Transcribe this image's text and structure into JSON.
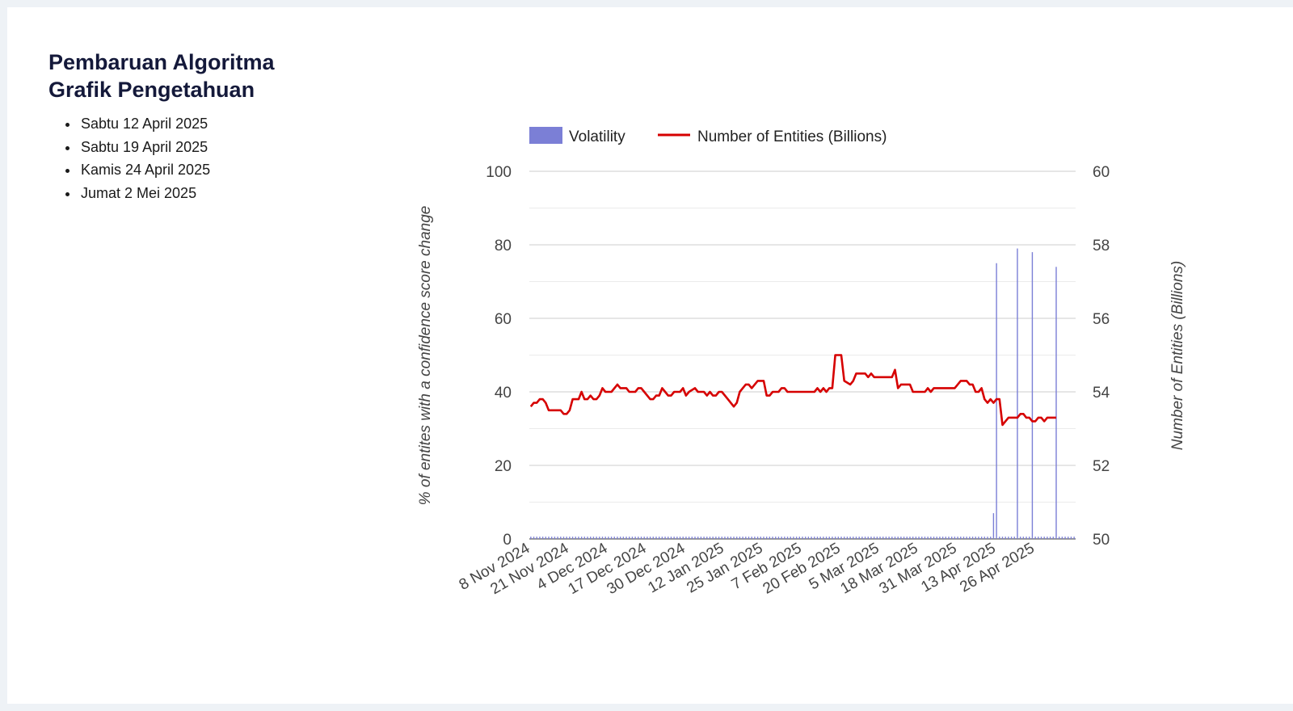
{
  "sidebar": {
    "title": "Pembaruan Algoritma Grafik Pengetahuan",
    "dates": [
      "Sabtu 12 April 2025",
      "Sabtu 19 April 2025",
      "Kamis 24 April 2025",
      "Jumat 2 Mei 2025"
    ]
  },
  "colors": {
    "volatility": "#7b7fd6",
    "entities": "#d60000",
    "grid": "#cccccc",
    "text": "#444444"
  },
  "chart_data": {
    "type": "bar+line",
    "legend_position": "top",
    "grid": true,
    "legend": [
      "Volatility",
      "Number of Entities (Billions)"
    ],
    "ylabel": "% of entites with a confidence score change",
    "y2label": "Number of Entities (Billions)",
    "ylim": [
      0,
      100
    ],
    "y2lim": [
      50,
      60
    ],
    "yticks": [
      0,
      20,
      40,
      60,
      80,
      100
    ],
    "y2ticks": [
      50,
      52,
      54,
      56,
      58,
      60
    ],
    "x_tick_labels": [
      "8 Nov 2024",
      "21 Nov 2024",
      "4 Dec 2024",
      "17 Dec 2024",
      "30 Dec 2024",
      "12 Jan 2025",
      "25 Jan 2025",
      "7 Feb 2025",
      "20 Feb 2025",
      "5 Mar 2025",
      "18 Mar 2025",
      "31 Mar 2025",
      "13 Apr 2025",
      "26 Apr 2025"
    ],
    "x_start_date": "2024-11-08",
    "day_count": 183,
    "volatility_baseline": 0.6,
    "volatility_spikes": [
      {
        "day": 155,
        "value": 7
      },
      {
        "day": 156,
        "value": 75
      },
      {
        "day": 163,
        "value": 79
      },
      {
        "day": 168,
        "value": 78
      },
      {
        "day": 176,
        "value": 74
      }
    ],
    "entities": [
      [
        0,
        53.6
      ],
      [
        1,
        53.7
      ],
      [
        2,
        53.7
      ],
      [
        3,
        53.8
      ],
      [
        4,
        53.8
      ],
      [
        5,
        53.7
      ],
      [
        6,
        53.5
      ],
      [
        10,
        53.5
      ],
      [
        11,
        53.4
      ],
      [
        12,
        53.4
      ],
      [
        13,
        53.5
      ],
      [
        14,
        53.8
      ],
      [
        16,
        53.8
      ],
      [
        17,
        54.0
      ],
      [
        18,
        53.8
      ],
      [
        19,
        53.8
      ],
      [
        20,
        53.9
      ],
      [
        21,
        53.8
      ],
      [
        22,
        53.8
      ],
      [
        23,
        53.9
      ],
      [
        24,
        54.1
      ],
      [
        25,
        54.0
      ],
      [
        27,
        54.0
      ],
      [
        29,
        54.2
      ],
      [
        30,
        54.1
      ],
      [
        32,
        54.1
      ],
      [
        33,
        54.0
      ],
      [
        35,
        54.0
      ],
      [
        36,
        54.1
      ],
      [
        37,
        54.1
      ],
      [
        38,
        54.0
      ],
      [
        40,
        53.8
      ],
      [
        41,
        53.8
      ],
      [
        42,
        53.9
      ],
      [
        43,
        53.9
      ],
      [
        44,
        54.1
      ],
      [
        45,
        54.0
      ],
      [
        46,
        53.9
      ],
      [
        47,
        53.9
      ],
      [
        48,
        54.0
      ],
      [
        50,
        54.0
      ],
      [
        51,
        54.1
      ],
      [
        52,
        53.9
      ],
      [
        53,
        54.0
      ],
      [
        55,
        54.1
      ],
      [
        56,
        54.0
      ],
      [
        58,
        54.0
      ],
      [
        59,
        53.9
      ],
      [
        60,
        54.0
      ],
      [
        61,
        53.9
      ],
      [
        62,
        53.9
      ],
      [
        63,
        54.0
      ],
      [
        64,
        54.0
      ],
      [
        66,
        53.8
      ],
      [
        68,
        53.6
      ],
      [
        69,
        53.7
      ],
      [
        70,
        54.0
      ],
      [
        71,
        54.1
      ],
      [
        72,
        54.2
      ],
      [
        73,
        54.2
      ],
      [
        74,
        54.1
      ],
      [
        75,
        54.2
      ],
      [
        76,
        54.3
      ],
      [
        78,
        54.3
      ],
      [
        79,
        53.9
      ],
      [
        80,
        53.9
      ],
      [
        81,
        54.0
      ],
      [
        83,
        54.0
      ],
      [
        84,
        54.1
      ],
      [
        85,
        54.1
      ],
      [
        86,
        54.0
      ],
      [
        95,
        54.0
      ],
      [
        96,
        54.1
      ],
      [
        97,
        54.0
      ],
      [
        98,
        54.1
      ],
      [
        99,
        54.0
      ],
      [
        100,
        54.1
      ],
      [
        101,
        54.1
      ],
      [
        102,
        55.0
      ],
      [
        103,
        55.0
      ],
      [
        104,
        55.0
      ],
      [
        105,
        54.3
      ],
      [
        107,
        54.2
      ],
      [
        108,
        54.3
      ],
      [
        109,
        54.5
      ],
      [
        112,
        54.5
      ],
      [
        113,
        54.4
      ],
      [
        114,
        54.5
      ],
      [
        115,
        54.4
      ],
      [
        121,
        54.4
      ],
      [
        122,
        54.6
      ],
      [
        123,
        54.1
      ],
      [
        124,
        54.2
      ],
      [
        127,
        54.2
      ],
      [
        128,
        54.0
      ],
      [
        132,
        54.0
      ],
      [
        133,
        54.1
      ],
      [
        134,
        54.0
      ],
      [
        135,
        54.1
      ],
      [
        142,
        54.1
      ],
      [
        143,
        54.2
      ],
      [
        144,
        54.3
      ],
      [
        146,
        54.3
      ],
      [
        147,
        54.2
      ],
      [
        148,
        54.2
      ],
      [
        149,
        54.0
      ],
      [
        150,
        54.0
      ],
      [
        151,
        54.1
      ],
      [
        152,
        53.8
      ],
      [
        153,
        53.7
      ],
      [
        154,
        53.8
      ],
      [
        155,
        53.7
      ],
      [
        156,
        53.8
      ],
      [
        157,
        53.8
      ],
      [
        158,
        53.1
      ],
      [
        159,
        53.2
      ],
      [
        160,
        53.3
      ],
      [
        163,
        53.3
      ],
      [
        164,
        53.4
      ],
      [
        165,
        53.4
      ],
      [
        166,
        53.3
      ],
      [
        167,
        53.3
      ],
      [
        168,
        53.2
      ],
      [
        169,
        53.2
      ],
      [
        170,
        53.3
      ],
      [
        171,
        53.3
      ],
      [
        172,
        53.2
      ],
      [
        173,
        53.3
      ],
      [
        176,
        53.3
      ]
    ]
  }
}
